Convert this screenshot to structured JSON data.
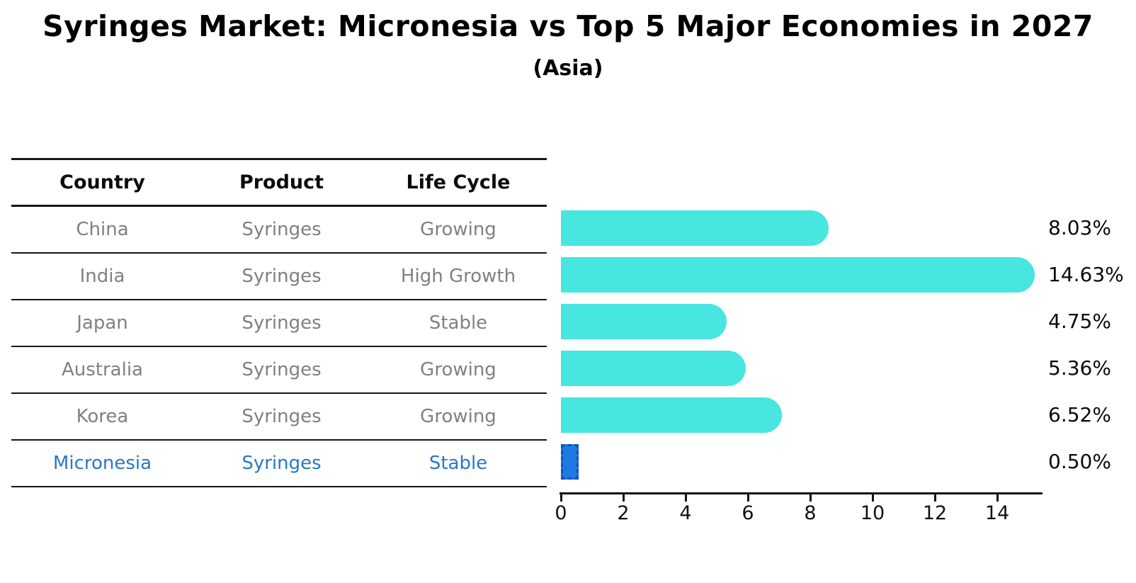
{
  "title": "Syringes Market: Micronesia vs Top 5 Major Economies in 2027",
  "subtitle": "(Asia)",
  "table": {
    "headers": [
      "Country",
      "Product",
      "Life Cycle"
    ],
    "rows": [
      {
        "country": "China",
        "product": "Syringes",
        "life_cycle": "Growing",
        "highlight": false
      },
      {
        "country": "India",
        "product": "Syringes",
        "life_cycle": "High Growth",
        "highlight": false
      },
      {
        "country": "Japan",
        "product": "Syringes",
        "life_cycle": "Stable",
        "highlight": false
      },
      {
        "country": "Australia",
        "product": "Syringes",
        "life_cycle": "Growing",
        "highlight": false
      },
      {
        "country": "Korea",
        "product": "Syringes",
        "life_cycle": "Growing",
        "highlight": false
      },
      {
        "country": "Micronesia",
        "product": "Syringes",
        "life_cycle": "Stable",
        "highlight": true
      }
    ]
  },
  "chart_data": {
    "type": "bar",
    "orientation": "horizontal",
    "categories": [
      "China",
      "India",
      "Japan",
      "Australia",
      "Korea",
      "Micronesia"
    ],
    "values": [
      8.03,
      14.63,
      4.75,
      5.36,
      6.52,
      0.5
    ],
    "value_labels": [
      "8.03%",
      "14.63%",
      "4.75%",
      "5.36%",
      "6.52%",
      "0.50%"
    ],
    "xlim": [
      0,
      15.5
    ],
    "xticks": [
      0,
      2,
      4,
      6,
      8,
      10,
      12,
      14
    ],
    "grid": false,
    "legend": "none",
    "highlight_index": 5,
    "colors": {
      "bar": "#47e6e0",
      "highlight_bar": "#1f79e2",
      "highlight_border": "#1254b6",
      "highlight_text": "#2878c8",
      "table_text": "#808080",
      "axis_text": "#111111"
    }
  }
}
